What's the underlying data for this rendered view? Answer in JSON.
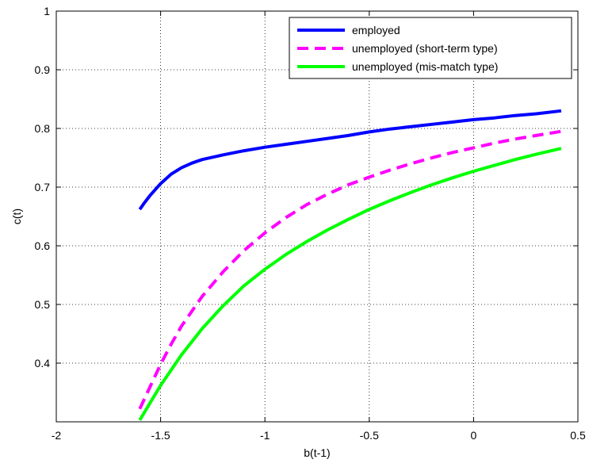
{
  "chart_data": {
    "type": "line",
    "title": "",
    "xlabel": "b(t-1)",
    "ylabel": "c(t)",
    "xlim": [
      -2,
      0.5
    ],
    "ylim": [
      0.3,
      1.0
    ],
    "xticks": [
      -2,
      -1.5,
      -1,
      -0.5,
      0,
      0.5
    ],
    "xtick_labels": [
      "-2",
      "-1.5",
      "-1",
      "-0.5",
      "0",
      "0.5"
    ],
    "yticks": [
      0.4,
      0.5,
      0.6,
      0.7,
      0.8,
      0.9,
      1.0
    ],
    "ytick_labels": [
      "0.4",
      "0.5",
      "0.6",
      "0.7",
      "0.8",
      "0.9",
      "1"
    ],
    "grid": true,
    "legend_position": "top-right",
    "series": [
      {
        "name": "employed",
        "color": "#0000ff",
        "style": "solid",
        "x": [
          -1.6,
          -1.58,
          -1.55,
          -1.5,
          -1.45,
          -1.4,
          -1.35,
          -1.3,
          -1.2,
          -1.1,
          -1.0,
          -0.9,
          -0.8,
          -0.7,
          -0.6,
          -0.5,
          -0.4,
          -0.3,
          -0.2,
          -0.1,
          0.0,
          0.1,
          0.2,
          0.3,
          0.42
        ],
        "y": [
          0.662,
          0.672,
          0.686,
          0.706,
          0.722,
          0.733,
          0.741,
          0.747,
          0.755,
          0.762,
          0.768,
          0.773,
          0.778,
          0.783,
          0.788,
          0.794,
          0.799,
          0.803,
          0.807,
          0.811,
          0.815,
          0.818,
          0.822,
          0.825,
          0.83
        ]
      },
      {
        "name": "unemployed (short-term type)",
        "color": "#ff00ff",
        "style": "dashed",
        "x": [
          -1.6,
          -1.55,
          -1.5,
          -1.45,
          -1.4,
          -1.3,
          -1.2,
          -1.1,
          -1.0,
          -0.9,
          -0.8,
          -0.7,
          -0.6,
          -0.5,
          -0.4,
          -0.3,
          -0.2,
          -0.1,
          0.0,
          0.1,
          0.2,
          0.3,
          0.42
        ],
        "y": [
          0.322,
          0.36,
          0.398,
          0.432,
          0.463,
          0.514,
          0.556,
          0.592,
          0.622,
          0.648,
          0.67,
          0.688,
          0.704,
          0.717,
          0.729,
          0.74,
          0.75,
          0.759,
          0.767,
          0.775,
          0.782,
          0.788,
          0.795
        ]
      },
      {
        "name": "unemployed (mis-match type)",
        "color": "#00ff00",
        "style": "solid",
        "x": [
          -1.6,
          -1.5,
          -1.4,
          -1.3,
          -1.2,
          -1.1,
          -1.0,
          -0.9,
          -0.8,
          -0.7,
          -0.6,
          -0.5,
          -0.4,
          -0.3,
          -0.2,
          -0.1,
          0.0,
          0.1,
          0.2,
          0.3,
          0.42
        ],
        "y": [
          0.303,
          0.362,
          0.414,
          0.459,
          0.498,
          0.532,
          0.56,
          0.585,
          0.607,
          0.627,
          0.645,
          0.662,
          0.677,
          0.691,
          0.704,
          0.716,
          0.727,
          0.737,
          0.747,
          0.756,
          0.766
        ]
      }
    ]
  }
}
